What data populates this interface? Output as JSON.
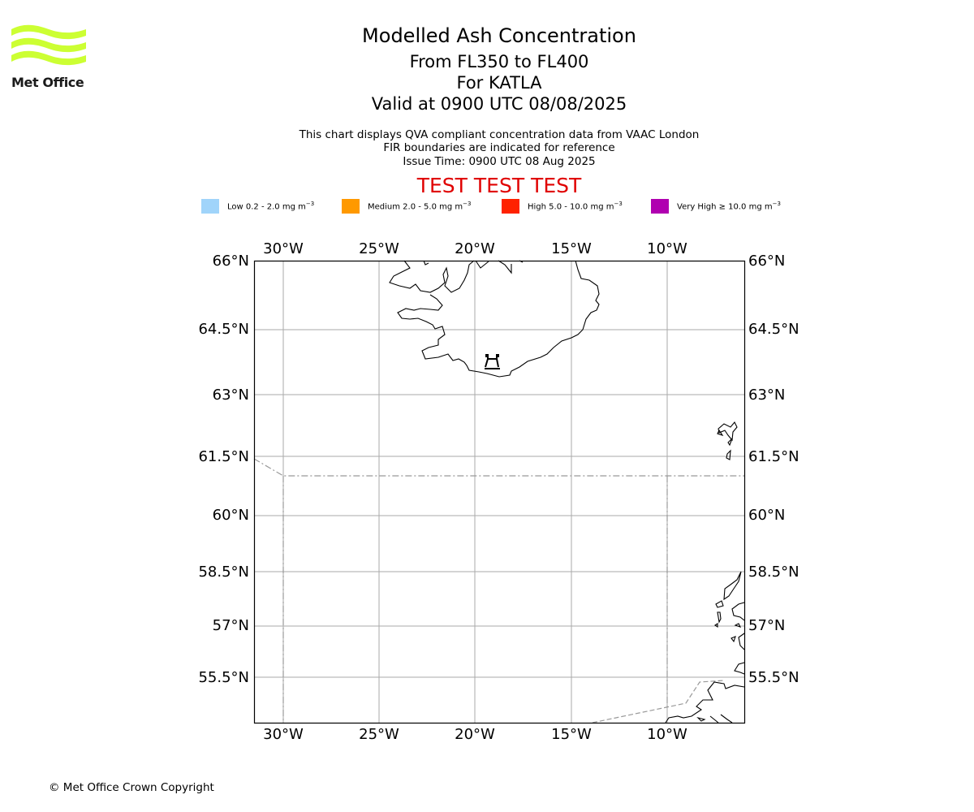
{
  "logo": {
    "text": "Met Office",
    "color": "#ccff33"
  },
  "title": "Modelled Ash Concentration",
  "subtitle_lines": [
    "From FL350 to FL400",
    "For KATLA",
    "Valid at 0900 UTC 08/08/2025"
  ],
  "description_lines": [
    "This chart displays QVA compliant concentration data from VAAC London",
    "FIR boundaries are indicated for reference",
    "Issue Time: 0900 UTC 08 Aug 2025"
  ],
  "warning": "TEST TEST TEST",
  "warning_color": "#e00000",
  "legend": [
    {
      "label": "Low 0.2 - 2.0 mg m",
      "color": "#a0d4fa"
    },
    {
      "label": "Medium 2.0 - 5.0 mg m",
      "color": "#ff9900"
    },
    {
      "label": "High 5.0 - 10.0 mg m",
      "color": "#ff2200"
    },
    {
      "label": "Very High  ≥  10.0 mg m",
      "color": "#b000b0"
    }
  ],
  "legend_unit_exponent": "−3",
  "map": {
    "lon_ticks": [
      "30°W",
      "25°W",
      "20°W",
      "15°W",
      "10°W"
    ],
    "lat_ticks": [
      "66°N",
      "64.5°N",
      "63°N",
      "61.5°N",
      "60°N",
      "58.5°N",
      "57°N",
      "55.5°N"
    ],
    "volcano_icon": "volcano-icon"
  },
  "copyright": "© Met Office Crown Copyright"
}
